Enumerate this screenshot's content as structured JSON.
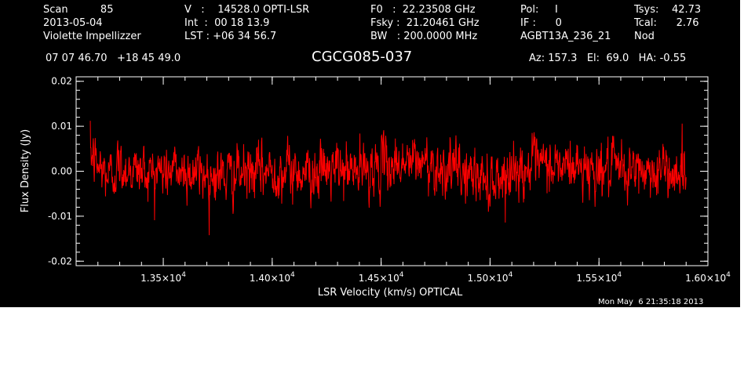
{
  "header": {
    "col1": [
      "Scan          85",
      "2013-05-04",
      "Violette Impellizzer"
    ],
    "col2": [
      "V   :    14528.0 OPTI-LSR",
      "Int  :  00 18 13.9",
      "LST : +06 34 56.7"
    ],
    "col3": [
      "F0   :  22.23508 GHz",
      "Fsky :  21.20461 GHz",
      "BW   : 200.0000 MHz"
    ],
    "col4": [
      "Pol:     I",
      "IF :      0",
      "AGBT13A_236_21"
    ],
    "col5": [
      "Tsys:    42.73",
      "Tcal:      2.76",
      "Nod"
    ],
    "coords": "07 07 46.70   +18 45 49.0",
    "object": "CGCG085-037",
    "pointing": "Az: 157.3   El:  69.0   HA: -0.55"
  },
  "footer": {
    "timestamp": "Mon May  6 21:35:18 2013"
  },
  "colors": {
    "background": "#000000",
    "axes": "#ffffff",
    "trace": "#ff0000"
  },
  "chart_data": {
    "type": "line",
    "xlabel": "LSR Velocity (km/s) OPTICAL",
    "ylabel": "Flux Density (Jy)",
    "xlim": [
      13100,
      16000
    ],
    "ylim": [
      -0.021,
      0.021
    ],
    "x_ticks": [
      13500,
      14000,
      14500,
      15000,
      15500,
      16000
    ],
    "x_tick_labels": [
      {
        "mantissa": "1.35",
        "exp": "4"
      },
      {
        "mantissa": "1.40",
        "exp": "4"
      },
      {
        "mantissa": "1.45",
        "exp": "4"
      },
      {
        "mantissa": "1.50",
        "exp": "4"
      },
      {
        "mantissa": "1.55",
        "exp": "4"
      },
      {
        "mantissa": "1.60",
        "exp": "4"
      }
    ],
    "x_minor_step": 100,
    "y_ticks": [
      -0.02,
      -0.01,
      0.0,
      0.01,
      0.02
    ],
    "y_tick_labels": [
      "-0.02",
      "-0.01",
      "0.00",
      "0.01",
      "0.02"
    ],
    "y_minor_step": 0.002,
    "grid": false,
    "series": [
      {
        "color": "#ff0000",
        "x_start": 13165,
        "x_end": 15900,
        "points": 1800,
        "noise_rms": 0.0035,
        "envelope": [
          [
            13165,
            0.004
          ],
          [
            13200,
            0.001
          ],
          [
            13250,
            -0.001
          ],
          [
            13300,
            0.001
          ],
          [
            13400,
            0.0
          ],
          [
            13600,
            0.0
          ],
          [
            13800,
            -0.001
          ],
          [
            14000,
            0.0
          ],
          [
            14200,
            0.0
          ],
          [
            14400,
            0.0
          ],
          [
            14600,
            0.002
          ],
          [
            14700,
            0.002
          ],
          [
            14850,
            0.0
          ],
          [
            15000,
            -0.002
          ],
          [
            15100,
            0.0
          ],
          [
            15200,
            0.001
          ],
          [
            15400,
            0.001
          ],
          [
            15600,
            0.0
          ],
          [
            15800,
            0.0
          ],
          [
            15900,
            0.0
          ]
        ]
      }
    ]
  }
}
